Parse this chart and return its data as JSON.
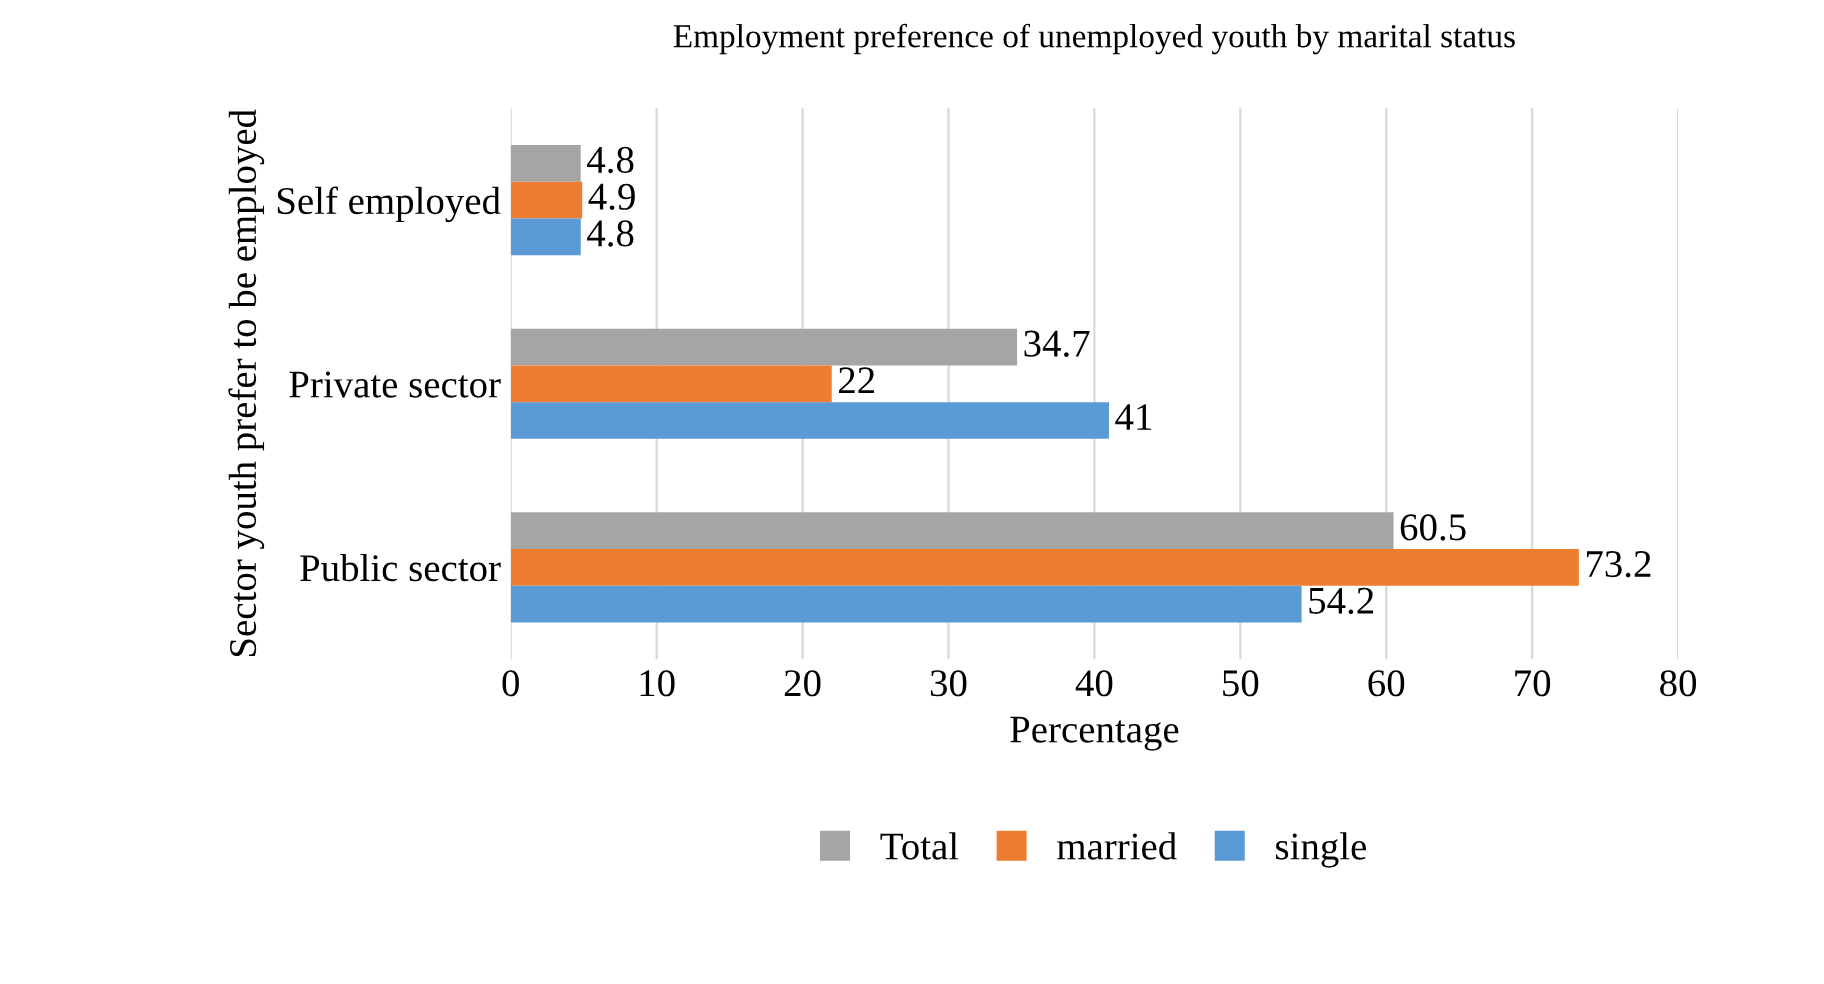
{
  "chart_data": {
    "type": "bar",
    "orientation": "horizontal",
    "title": "Employment preference of unemployed youth by marital status",
    "xlabel": "Percentage",
    "ylabel": "Sector youth prefer to be employed",
    "categories": [
      "Self employed",
      "Private sector",
      "Public sector"
    ],
    "series": [
      {
        "name": "Total",
        "color": "#a5a5a5",
        "values": [
          4.8,
          34.7,
          60.5
        ]
      },
      {
        "name": "married",
        "color": "#ed7d31",
        "values": [
          4.9,
          22,
          73.2
        ]
      },
      {
        "name": "single",
        "color": "#5b9bd5",
        "values": [
          4.8,
          41,
          54.2
        ]
      }
    ],
    "xlim": [
      0,
      80
    ],
    "xticks": [
      0,
      10,
      20,
      30,
      40,
      50,
      60,
      70,
      80
    ],
    "grid": "x",
    "legend": "bottom",
    "data_labels": true
  }
}
